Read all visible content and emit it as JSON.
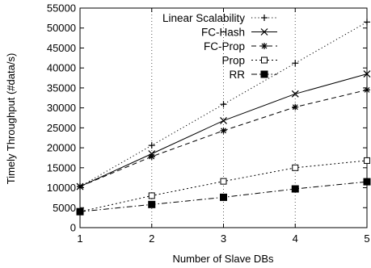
{
  "chart_data": {
    "type": "line",
    "xlabel": "Number of Slave DBs",
    "ylabel": "Timely Throughput (#data/s)",
    "xlim": [
      1,
      5
    ],
    "ylim": [
      0,
      55000
    ],
    "x": [
      1,
      2,
      3,
      4,
      5
    ],
    "xticks": [
      "1",
      "2",
      "3",
      "4",
      "5"
    ],
    "yticks": [
      "0",
      "5000",
      "10000",
      "15000",
      "20000",
      "25000",
      "30000",
      "35000",
      "40000",
      "45000",
      "50000",
      "55000"
    ],
    "grid": "x-major dotted",
    "legend_position": "top-right",
    "series": [
      {
        "name": "Linear Scalability",
        "values": [
          10300,
          20600,
          30900,
          41200,
          51500
        ],
        "marker": "plus",
        "dash": "dotted",
        "color": "#000000"
      },
      {
        "name": "FC-Hash",
        "values": [
          10300,
          18500,
          26800,
          33500,
          38500
        ],
        "marker": "cross",
        "dash": "solid",
        "color": "#000000"
      },
      {
        "name": "FC-Prop",
        "values": [
          10300,
          17800,
          24300,
          30200,
          34500
        ],
        "marker": "asterisk",
        "dash": "dashed",
        "color": "#000000"
      },
      {
        "name": "Prop",
        "values": [
          4000,
          8000,
          11600,
          15000,
          16800
        ],
        "marker": "open-square",
        "dash": "short-dotted",
        "color": "#000000"
      },
      {
        "name": "RR",
        "values": [
          4000,
          5800,
          7600,
          9700,
          11500
        ],
        "marker": "filled-square",
        "dash": "dash-dot",
        "color": "#000000"
      }
    ]
  }
}
